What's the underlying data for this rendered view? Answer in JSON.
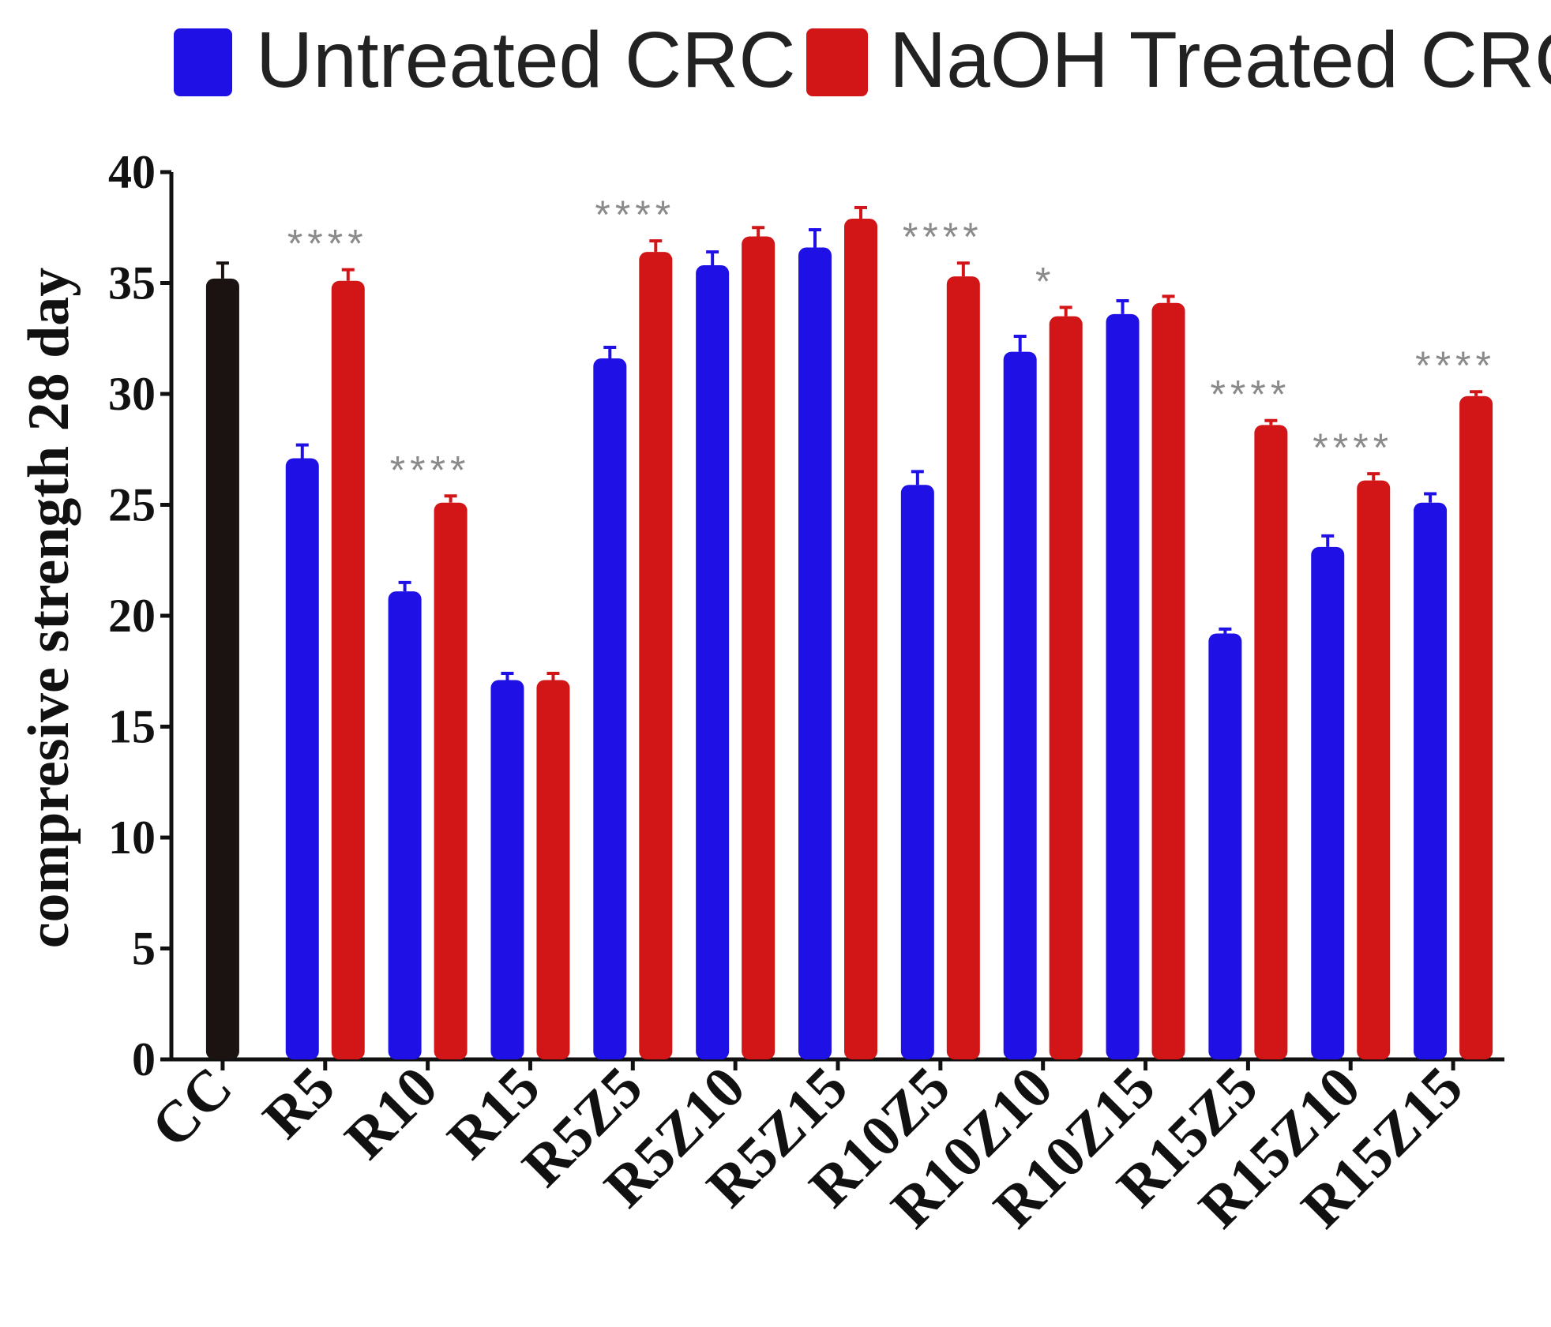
{
  "chart_data": {
    "type": "bar",
    "title": "",
    "xlabel": "",
    "ylabel": "compresive strength 28 day",
    "ylim": [
      0,
      40
    ],
    "yticks": [
      0,
      5,
      10,
      15,
      20,
      25,
      30,
      35,
      40
    ],
    "grid": false,
    "legend_position": "top",
    "categories": [
      "CC",
      "R5",
      "R10",
      "R15",
      "R5Z5",
      "R5Z10",
      "R5Z15",
      "R10Z5",
      "R10Z10",
      "R10Z15",
      "R15Z5",
      "R15Z10",
      "R15Z15"
    ],
    "control": {
      "category": "CC",
      "value": 35.2,
      "error": 0.7,
      "color": "#1a1311"
    },
    "series": [
      {
        "name": "Untreated CRC",
        "color": "#1f10e6",
        "values": [
          null,
          27.1,
          21.1,
          17.1,
          31.6,
          35.8,
          36.6,
          25.9,
          31.9,
          33.6,
          19.2,
          23.1,
          25.1
        ],
        "errors": [
          null,
          0.6,
          0.4,
          0.3,
          0.5,
          0.6,
          0.8,
          0.6,
          0.7,
          0.6,
          0.2,
          0.5,
          0.4
        ]
      },
      {
        "name": "NaOH Treated CRC",
        "color": "#d21617",
        "values": [
          null,
          35.1,
          25.1,
          17.1,
          36.4,
          37.1,
          37.9,
          35.3,
          33.5,
          34.1,
          28.6,
          26.1,
          29.9
        ],
        "errors": [
          null,
          0.5,
          0.3,
          0.3,
          0.5,
          0.4,
          0.5,
          0.6,
          0.4,
          0.3,
          0.2,
          0.3,
          0.2
        ]
      }
    ],
    "significance": [
      "",
      "****",
      "****",
      "",
      "****",
      "",
      "",
      "****",
      "*",
      "",
      "****",
      "****",
      "****"
    ]
  }
}
